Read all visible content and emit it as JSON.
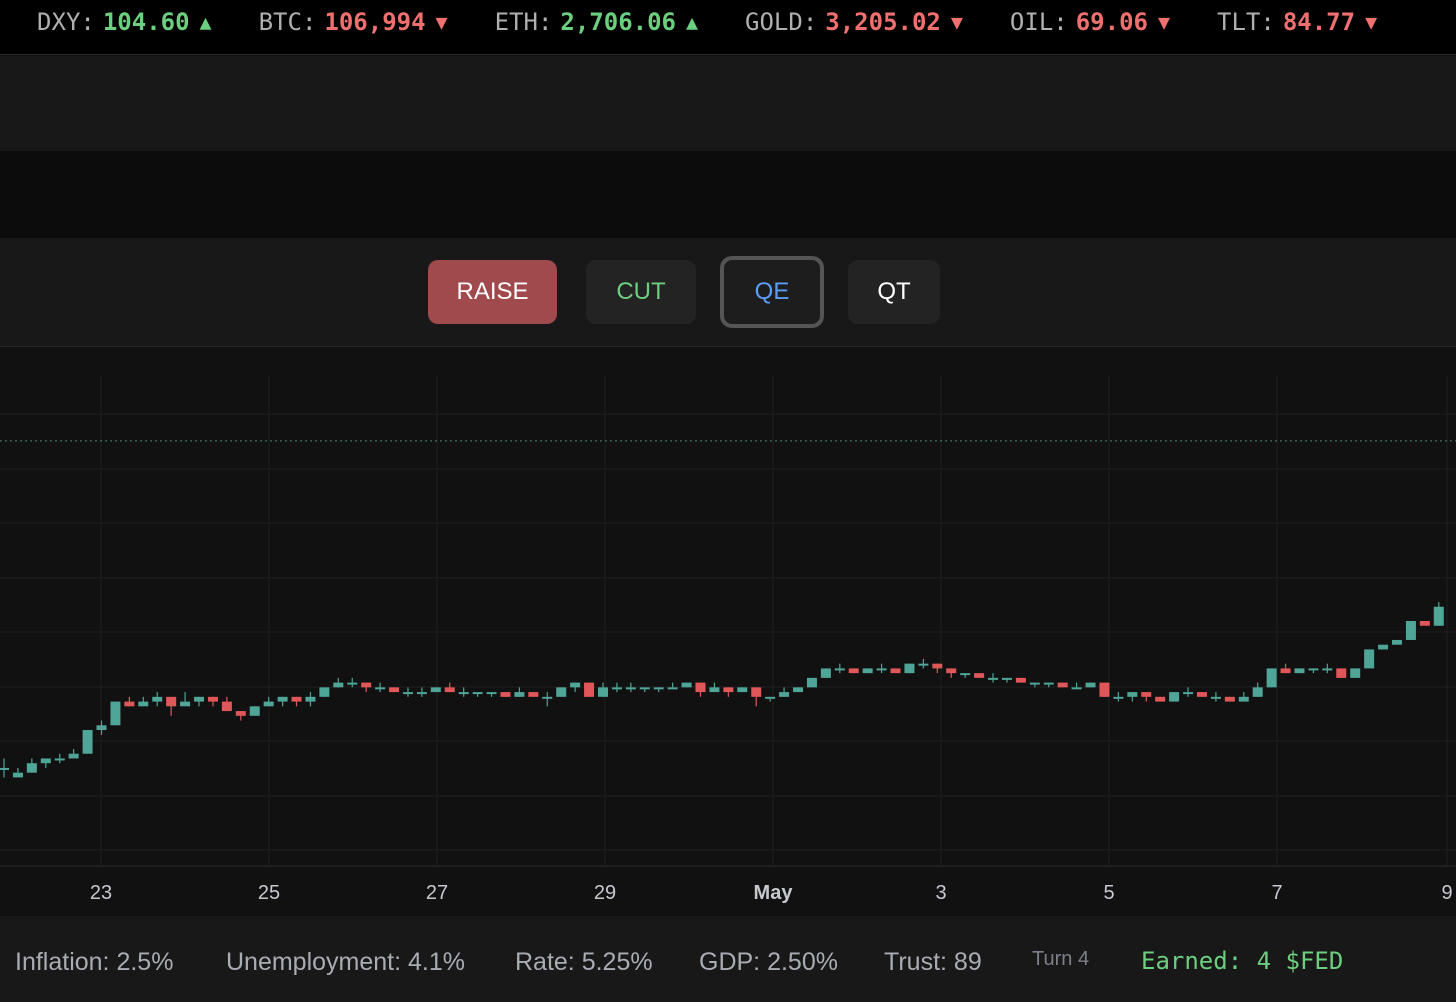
{
  "ticker": {
    "items": [
      {
        "symbol": "DXY:",
        "value": "104.60",
        "arrow": "▲",
        "dir": "up"
      },
      {
        "symbol": "BTC:",
        "value": "106,994",
        "arrow": "▼",
        "dir": "down"
      },
      {
        "symbol": "ETH:",
        "value": "2,706.06",
        "arrow": "▲",
        "dir": "up"
      },
      {
        "symbol": "GOLD:",
        "value": "3,205.02",
        "arrow": "▼",
        "dir": "down"
      },
      {
        "symbol": "OIL:",
        "value": "69.06",
        "arrow": "▼",
        "dir": "down"
      },
      {
        "symbol": "TLT:",
        "value": "84.77",
        "arrow": "▼",
        "dir": "down"
      }
    ]
  },
  "actions": {
    "raise_label": "RAISE",
    "cut_label": "CUT",
    "qe_label": "QE",
    "qt_label": "QT"
  },
  "colors": {
    "up": "#4fa597",
    "down": "#e0575a",
    "grid": "#1f1f1f",
    "axis_text": "#c7c9cf",
    "reference_line": "#4fa597"
  },
  "chart_data": {
    "type": "candlestick",
    "x_tick_labels": [
      "23",
      "25",
      "27",
      "29",
      "May",
      "3",
      "5",
      "7",
      "9"
    ],
    "bold_tick": "May",
    "ylim": [
      0,
      100
    ],
    "reference_line": 88,
    "candles": [
      [
        19,
        19,
        21,
        17
      ],
      [
        17,
        18,
        19,
        17
      ],
      [
        18,
        20,
        21,
        18
      ],
      [
        20,
        21,
        21,
        19
      ],
      [
        21,
        21,
        22,
        20
      ],
      [
        21,
        22,
        23,
        21
      ],
      [
        22,
        27,
        27,
        22
      ],
      [
        27,
        28,
        29,
        26
      ],
      [
        28,
        33,
        33,
        28
      ],
      [
        33,
        32,
        34,
        32
      ],
      [
        32,
        33,
        34,
        32
      ],
      [
        33,
        34,
        35,
        32
      ],
      [
        34,
        32,
        34,
        30
      ],
      [
        32,
        33,
        35,
        33
      ],
      [
        33,
        34,
        34,
        32
      ],
      [
        34,
        33,
        34,
        32
      ],
      [
        33,
        31,
        34,
        31
      ],
      [
        31,
        30,
        31,
        29
      ],
      [
        30,
        32,
        32,
        30
      ],
      [
        32,
        33,
        34,
        32
      ],
      [
        33,
        34,
        34,
        32
      ],
      [
        34,
        33,
        34,
        32
      ],
      [
        33,
        34,
        35,
        32
      ],
      [
        34,
        36,
        36,
        34
      ],
      [
        36,
        37,
        38,
        36
      ],
      [
        37,
        37,
        38,
        36
      ],
      [
        37,
        36,
        37,
        35
      ],
      [
        36,
        36,
        37,
        35
      ],
      [
        36,
        35,
        36,
        35
      ],
      [
        35,
        35,
        36,
        34
      ],
      [
        35,
        35,
        36,
        34
      ],
      [
        35,
        36,
        36,
        35
      ],
      [
        36,
        35,
        37,
        35
      ],
      [
        35,
        35,
        36,
        34
      ],
      [
        35,
        35,
        35,
        34
      ],
      [
        35,
        35,
        35,
        34
      ],
      [
        35,
        34,
        35,
        34
      ],
      [
        34,
        35,
        36,
        34
      ],
      [
        35,
        34,
        35,
        34
      ],
      [
        34,
        34,
        35,
        32
      ],
      [
        34,
        36,
        36,
        34
      ],
      [
        36,
        37,
        37,
        35
      ],
      [
        37,
        34,
        37,
        34
      ],
      [
        34,
        36,
        37,
        34
      ],
      [
        36,
        36,
        37,
        35
      ],
      [
        36,
        36,
        37,
        35
      ],
      [
        36,
        36,
        36,
        35
      ],
      [
        36,
        36,
        36,
        35
      ],
      [
        36,
        36,
        37,
        36
      ],
      [
        36,
        37,
        37,
        36
      ],
      [
        37,
        35,
        37,
        34
      ],
      [
        35,
        36,
        37,
        35
      ],
      [
        36,
        35,
        36,
        34
      ],
      [
        35,
        36,
        36,
        35
      ],
      [
        36,
        34,
        36,
        32
      ],
      [
        34,
        34,
        34,
        33
      ],
      [
        34,
        35,
        36,
        34
      ],
      [
        35,
        36,
        36,
        35
      ],
      [
        36,
        38,
        38,
        36
      ],
      [
        38,
        40,
        40,
        38
      ],
      [
        40,
        40,
        41,
        39
      ],
      [
        40,
        39,
        40,
        39
      ],
      [
        39,
        40,
        40,
        39
      ],
      [
        40,
        40,
        41,
        39
      ],
      [
        40,
        39,
        40,
        39
      ],
      [
        39,
        41,
        41,
        39
      ],
      [
        41,
        41,
        42,
        40
      ],
      [
        41,
        40,
        41,
        39
      ],
      [
        40,
        39,
        40,
        38
      ],
      [
        39,
        39,
        39,
        38
      ],
      [
        39,
        38,
        39,
        38
      ],
      [
        38,
        38,
        39,
        37
      ],
      [
        38,
        38,
        38,
        37
      ],
      [
        38,
        37,
        38,
        37
      ],
      [
        37,
        37,
        37,
        36
      ],
      [
        37,
        37,
        37,
        36
      ],
      [
        37,
        36,
        37,
        36
      ],
      [
        36,
        36,
        37,
        36
      ],
      [
        36,
        37,
        37,
        36
      ],
      [
        37,
        34,
        37,
        34
      ],
      [
        34,
        34,
        35,
        33
      ],
      [
        34,
        35,
        35,
        33
      ],
      [
        35,
        34,
        35,
        33
      ],
      [
        34,
        33,
        34,
        33
      ],
      [
        33,
        35,
        35,
        33
      ],
      [
        35,
        35,
        36,
        34
      ],
      [
        35,
        34,
        35,
        34
      ],
      [
        34,
        34,
        35,
        33
      ],
      [
        34,
        33,
        34,
        33
      ],
      [
        33,
        34,
        35,
        33
      ],
      [
        34,
        36,
        37,
        34
      ],
      [
        36,
        40,
        40,
        36
      ],
      [
        40,
        39,
        41,
        39
      ],
      [
        39,
        40,
        40,
        39
      ],
      [
        40,
        40,
        40,
        39
      ],
      [
        40,
        40,
        41,
        39
      ],
      [
        40,
        38,
        40,
        38
      ],
      [
        38,
        40,
        40,
        38
      ],
      [
        40,
        44,
        44,
        40
      ],
      [
        44,
        45,
        45,
        44
      ],
      [
        45,
        46,
        46,
        45
      ],
      [
        46,
        50,
        50,
        46
      ],
      [
        50,
        49,
        50,
        49
      ],
      [
        49,
        53,
        54,
        49
      ]
    ]
  },
  "stats": {
    "inflation": "Inflation: 2.5%",
    "unemployment": "Unemployment: 4.1%",
    "rate": "Rate: 5.25%",
    "gdp": "GDP: 2.50%",
    "trust": "Trust: 89",
    "turn": "Turn 4",
    "earned": "Earned: 4 $FED"
  }
}
